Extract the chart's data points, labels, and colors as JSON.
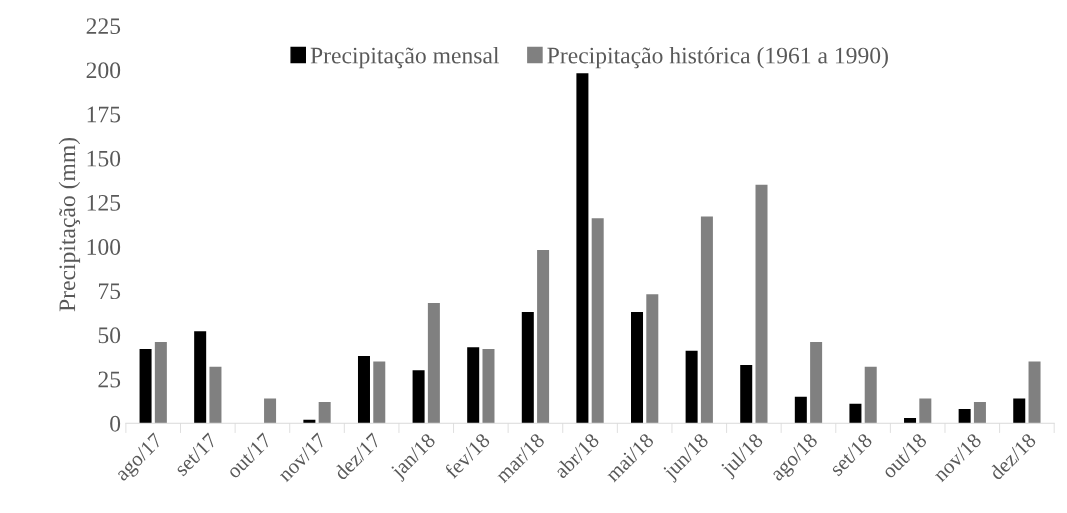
{
  "chart_data": {
    "type": "bar",
    "ylabel": "Precipitação (mm)",
    "categories": [
      "ago/17",
      "set/17",
      "out/17",
      "nov/17",
      "dez/17",
      "jan/18",
      "fev/18",
      "mar/18",
      "abr/18",
      "mai/18",
      "jun/18",
      "jul/18",
      "ago/18",
      "set/18",
      "out/18",
      "nov/18",
      "dez/18"
    ],
    "series": [
      {
        "name": "Precipitação mensal",
        "color": "#000000",
        "values": [
          42,
          52,
          0,
          2,
          38,
          30,
          43,
          63,
          198,
          63,
          41,
          33,
          15,
          11,
          3,
          8,
          14
        ]
      },
      {
        "name": "Precipitação histórica (1961 a 1990)",
        "color": "#808080",
        "values": [
          46,
          32,
          14,
          12,
          35,
          68,
          42,
          98,
          116,
          73,
          117,
          135,
          46,
          32,
          14,
          12,
          35
        ]
      }
    ],
    "ylim": [
      0,
      225
    ],
    "yticks": [
      0,
      25,
      50,
      75,
      100,
      125,
      150,
      175,
      200,
      225
    ],
    "grid": false,
    "legend": "top"
  }
}
